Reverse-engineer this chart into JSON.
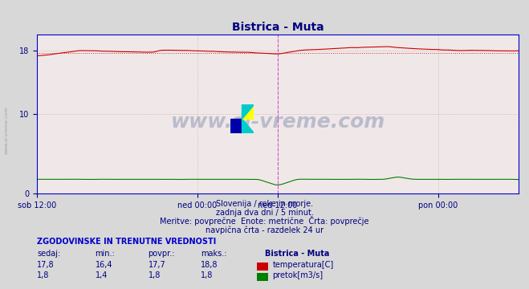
{
  "title": "Bistrica - Muta",
  "title_color": "#000080",
  "bg_color": "#d8d8d8",
  "plot_bg_color": "#f0e8e8",
  "grid_color": "#c8a0a0",
  "grid_style": ":",
  "xlabel_ticks": [
    "sob 12:00",
    "ned 00:00",
    "ned 12:00",
    "pon 00:00"
  ],
  "ylim": [
    0,
    20
  ],
  "yticks": [
    0,
    10,
    18
  ],
  "temp_color": "#cc0000",
  "flow_color": "#008000",
  "avg_line_color": "#cc0000",
  "avg_line_style": ":",
  "avg_value": 17.7,
  "vline_color": "#cc44cc",
  "vline_style": "--",
  "vline_positions": [
    0.5,
    1.0
  ],
  "watermark_text": "www.si-vreme.com",
  "watermark_color": "#1a3a7a",
  "watermark_alpha": 0.25,
  "subtitle1": "Slovenija / reke in morje.",
  "subtitle2": "zadnja dva dni / 5 minut.",
  "subtitle3": "Meritve: povprečne  Enote: metrične  Črta: povprečje",
  "subtitle4": "navpična črta - razdelek 24 ur",
  "subtitle_color": "#000080",
  "table_header": "ZGODOVINSKE IN TRENUTNE VREDNOSTI",
  "table_header_color": "#0000cc",
  "col_headers": [
    "sedaj:",
    "min.:",
    "povpr.:",
    "maks.:",
    "Bistrica - Muta"
  ],
  "row1_vals": [
    "17,8",
    "16,4",
    "17,7",
    "18,8"
  ],
  "row2_vals": [
    "1,8",
    "1,4",
    "1,8",
    "1,8"
  ],
  "row1_label": "temperatura[C]",
  "row2_label": "pretok[m3/s]",
  "label_color": "#000080",
  "val_color": "#000080",
  "temp_swatch": "#cc0000",
  "flow_swatch": "#008000",
  "border_color": "#0000cc",
  "n_points": 576
}
